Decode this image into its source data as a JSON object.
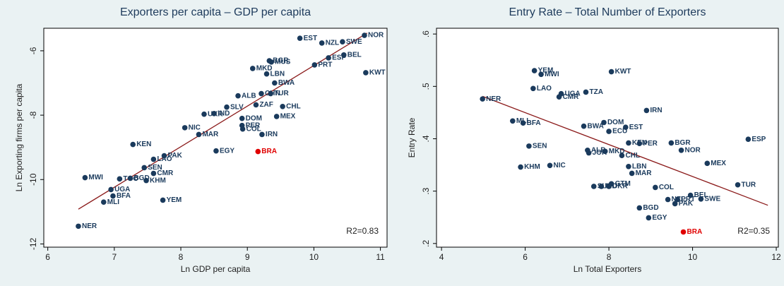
{
  "chart_data": [
    {
      "type": "scatter",
      "title": "Exporters per capita – GDP per capita",
      "xlabel": "Ln GDP per capita",
      "ylabel": "Ln Exporting firms per capita",
      "xlim": [
        5.94,
        11.1
      ],
      "ylim": [
        -12.1,
        -5.3
      ],
      "xticks": [
        6,
        7,
        8,
        9,
        10,
        11
      ],
      "yticks": [
        -12,
        -10,
        -8,
        -6
      ],
      "annotation": "R2=0.83",
      "series": [
        {
          "color": "#1a3a5c",
          "labels": [
            "NOR",
            "SWE",
            "NZL",
            "EST",
            "BEL",
            "ESP",
            "PRT",
            "KWT",
            "BGR",
            "MUS",
            "MKD",
            "LBN",
            "BWA",
            "ALB",
            "CHN",
            "TUR",
            "ZAF",
            "CHL",
            "SLV",
            "IND",
            "UKR",
            "MEX",
            "DOM",
            "PER",
            "COL",
            "NIC",
            "MAR",
            "IRN",
            "KEN",
            "EGY",
            "PAK",
            "LAO",
            "SEN",
            "CMR",
            "MWI",
            "TGO",
            "BGD",
            "KHM",
            "UGA",
            "BFA",
            "MLI",
            "YEM",
            "NER"
          ],
          "x": [
            10.76,
            10.43,
            10.12,
            9.79,
            10.45,
            10.22,
            10.01,
            10.78,
            9.33,
            9.36,
            9.08,
            9.29,
            9.41,
            8.86,
            9.21,
            9.35,
            9.13,
            9.53,
            8.69,
            8.5,
            8.35,
            9.44,
            8.92,
            8.92,
            8.93,
            8.06,
            8.27,
            9.22,
            7.28,
            8.53,
            7.75,
            7.59,
            7.45,
            7.59,
            6.56,
            7.08,
            7.24,
            7.48,
            6.95,
            6.98,
            6.84,
            7.73,
            6.46
          ],
          "values": [
            -5.52,
            -5.72,
            -5.76,
            -5.61,
            -6.13,
            -6.22,
            -6.44,
            -6.68,
            -6.31,
            -6.35,
            -6.55,
            -6.72,
            -7.0,
            -7.4,
            -7.33,
            -7.33,
            -7.68,
            -7.73,
            -7.75,
            -7.95,
            -7.97,
            -8.04,
            -8.1,
            -8.32,
            -8.43,
            -8.39,
            -8.6,
            -8.6,
            -8.91,
            -9.11,
            -9.26,
            -9.37,
            -9.63,
            -9.81,
            -9.94,
            -9.98,
            -9.96,
            -10.03,
            -10.31,
            -10.51,
            -10.7,
            -10.64,
            -11.45
          ]
        },
        {
          "color": "#e00000",
          "labels": [
            "BRA"
          ],
          "x": [
            9.16
          ],
          "values": [
            -9.13
          ]
        }
      ],
      "fit": {
        "color": "#8b1a1a",
        "x": [
          6.46,
          10.8
        ],
        "values": [
          -10.92,
          -5.45
        ]
      }
    },
    {
      "type": "scatter",
      "title": "Entry Rate – Total Number of Exporters",
      "xlabel": "Ln Total Exporters",
      "ylabel": "Entry Rate",
      "xlim": [
        3.88,
        12.05
      ],
      "ylim": [
        0.193,
        0.611
      ],
      "xticks": [
        4,
        6,
        8,
        10,
        12
      ],
      "yticks": [
        {
          "value": 0.2,
          "label": ".2"
        },
        {
          "value": 0.3,
          "label": ".3"
        },
        {
          "value": 0.4,
          "label": ".4"
        },
        {
          "value": 0.5,
          "label": ".5"
        },
        {
          "value": 0.6,
          "label": ".6"
        }
      ],
      "annotation": "R2=0.35",
      "series": [
        {
          "color": "#1a3a5c",
          "labels": [
            "YEM",
            "MWI",
            "KWT",
            "LAO",
            "UGA",
            "CMR",
            "TZA",
            "NER",
            "IRN",
            "MLI",
            "BFA",
            "DOM",
            "BWA",
            "EST",
            "ECU",
            "ESP",
            "KEN",
            "PER",
            "BGR",
            "SEN",
            "NOR",
            "ALB",
            "MKD",
            "JOR",
            "CHL",
            "MEX",
            "KHM",
            "NIC",
            "LBN",
            "MAR",
            "GTM",
            "TUR",
            "SLV",
            "IND",
            "UKR",
            "COL",
            "BEL",
            "NZL",
            "PRT",
            "SWE",
            "PAK",
            "BGD",
            "EGY"
          ],
          "x": [
            6.22,
            6.38,
            8.06,
            6.19,
            6.86,
            6.81,
            7.45,
            4.98,
            8.9,
            5.7,
            5.95,
            7.88,
            7.4,
            8.4,
            8.0,
            11.33,
            8.47,
            8.73,
            9.49,
            6.09,
            9.73,
            7.49,
            7.91,
            7.52,
            8.31,
            10.35,
            5.89,
            6.59,
            8.47,
            8.55,
            8.06,
            11.08,
            7.64,
            7.82,
            8.0,
            9.11,
            9.95,
            9.41,
            9.64,
            10.2,
            9.58,
            8.73,
            8.95
          ],
          "values": [
            0.53,
            0.523,
            0.528,
            0.496,
            0.486,
            0.48,
            0.489,
            0.476,
            0.454,
            0.434,
            0.43,
            0.431,
            0.424,
            0.422,
            0.414,
            0.399,
            0.392,
            0.391,
            0.392,
            0.386,
            0.378,
            0.378,
            0.376,
            0.373,
            0.368,
            0.353,
            0.346,
            0.349,
            0.347,
            0.334,
            0.314,
            0.312,
            0.309,
            0.309,
            0.309,
            0.307,
            0.292,
            0.284,
            0.284,
            0.285,
            0.276,
            0.268,
            0.249
          ]
        },
        {
          "color": "#e00000",
          "labels": [
            "BRA"
          ],
          "x": [
            9.78
          ],
          "values": [
            0.222
          ]
        }
      ],
      "fit": {
        "color": "#8b1a1a",
        "x": [
          4.98,
          11.8
        ],
        "values": [
          0.481,
          0.273
        ]
      }
    }
  ]
}
